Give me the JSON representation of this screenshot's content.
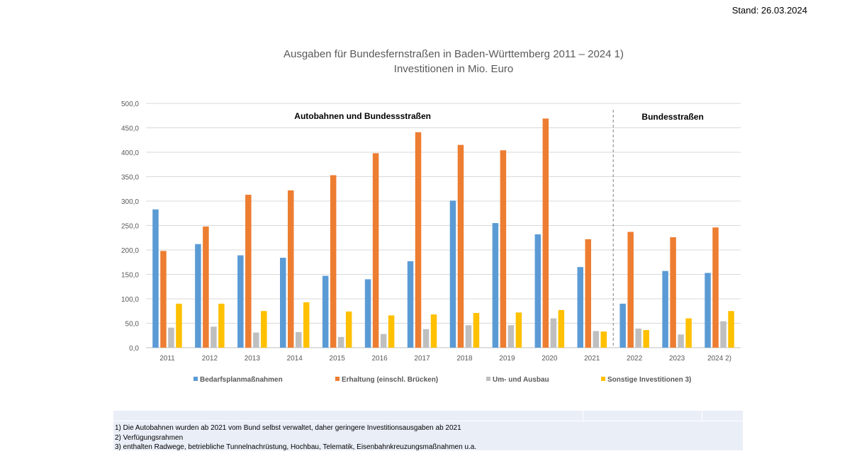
{
  "stand": "Stand: 26.03.2024",
  "footnotes": [
    "1) Die Autobahnen wurden ab 2021 vom Bund selbst verwaltet, daher geringere Investitionsausgaben ab 2021",
    "2) Verfügungsrahmen",
    "3) enthalten Radwege, betriebliche Tunnelnachrüstung, Hochbau, Telematik, Eisenbahnkreuzungsmaßnahmen u.a."
  ],
  "chart_data": {
    "type": "bar",
    "title": "Ausgaben für Bundesfernstraßen in Baden-Württemberg 2011 – 2024 1)",
    "subtitle": "Investitionen in Mio. Euro",
    "xlabel": "",
    "ylabel": "",
    "ylim": [
      0,
      500
    ],
    "yticks": [
      "0,0",
      "50,0",
      "100,0",
      "150,0",
      "200,0",
      "250,0",
      "300,0",
      "350,0",
      "400,0",
      "450,0",
      "500,0"
    ],
    "grid": true,
    "legend_position": "bottom",
    "categories": [
      "2011",
      "2012",
      "2013",
      "2014",
      "2015",
      "2016",
      "2017",
      "2018",
      "2019",
      "2020",
      "2021",
      "2022",
      "2023",
      "2024 2)"
    ],
    "series": [
      {
        "name": "Bedarfsplanmaßnahmen",
        "color": "#5b9bd5",
        "values": [
          283,
          212,
          189,
          184,
          147,
          140,
          177,
          301,
          255,
          232,
          165,
          90,
          157,
          153
        ]
      },
      {
        "name": "Erhaltung (einschl. Brücken)",
        "color": "#ed7d31",
        "values": [
          198,
          248,
          313,
          322,
          353,
          398,
          441,
          415,
          404,
          469,
          222,
          237,
          226,
          246
        ]
      },
      {
        "name": "Um- und Ausbau",
        "color": "#bfbfbf",
        "values": [
          41,
          43,
          31,
          32,
          22,
          28,
          38,
          46,
          46,
          60,
          34,
          39,
          27,
          54
        ]
      },
      {
        "name": "Sonstige Investitionen 3)",
        "color": "#ffc000",
        "values": [
          90,
          90,
          75,
          93,
          74,
          66,
          68,
          71,
          72,
          77,
          33,
          36,
          60,
          75
        ]
      }
    ],
    "annotations": [
      {
        "text": "Autobahnen und Bundessstraßen",
        "region": "left"
      },
      {
        "text": "Bundesstraßen",
        "region": "right"
      }
    ]
  }
}
